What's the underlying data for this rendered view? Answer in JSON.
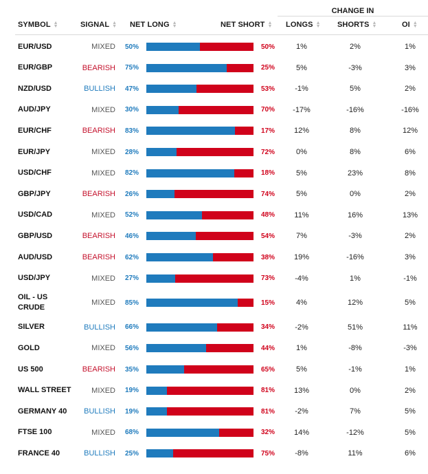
{
  "header": {
    "symbol": "SYMBOL",
    "signal": "SIGNAL",
    "net_long": "NET LONG",
    "net_short": "NET SHORT",
    "change_in": "CHANGE IN",
    "longs": "LONGS",
    "shorts": "SHORTS",
    "oi": "OI"
  },
  "colors": {
    "long": "#1f7bbd",
    "short": "#d0021b",
    "mixed": "#555555"
  },
  "rows": [
    {
      "symbol": "EUR/USD",
      "signal": "MIXED",
      "net_long": "50%",
      "net_short": "50%",
      "long_pct": 50,
      "longs": "1%",
      "shorts": "2%",
      "oi": "1%"
    },
    {
      "symbol": "EUR/GBP",
      "signal": "BEARISH",
      "net_long": "75%",
      "net_short": "25%",
      "long_pct": 75,
      "longs": "5%",
      "shorts": "-3%",
      "oi": "3%"
    },
    {
      "symbol": "NZD/USD",
      "signal": "BULLISH",
      "net_long": "47%",
      "net_short": "53%",
      "long_pct": 47,
      "longs": "-1%",
      "shorts": "5%",
      "oi": "2%"
    },
    {
      "symbol": "AUD/JPY",
      "signal": "MIXED",
      "net_long": "30%",
      "net_short": "70%",
      "long_pct": 30,
      "longs": "-17%",
      "shorts": "-16%",
      "oi": "-16%"
    },
    {
      "symbol": "EUR/CHF",
      "signal": "BEARISH",
      "net_long": "83%",
      "net_short": "17%",
      "long_pct": 83,
      "longs": "12%",
      "shorts": "8%",
      "oi": "12%"
    },
    {
      "symbol": "EUR/JPY",
      "signal": "MIXED",
      "net_long": "28%",
      "net_short": "72%",
      "long_pct": 28,
      "longs": "0%",
      "shorts": "8%",
      "oi": "6%"
    },
    {
      "symbol": "USD/CHF",
      "signal": "MIXED",
      "net_long": "82%",
      "net_short": "18%",
      "long_pct": 82,
      "longs": "5%",
      "shorts": "23%",
      "oi": "8%"
    },
    {
      "symbol": "GBP/JPY",
      "signal": "BEARISH",
      "net_long": "26%",
      "net_short": "74%",
      "long_pct": 26,
      "longs": "5%",
      "shorts": "0%",
      "oi": "2%"
    },
    {
      "symbol": "USD/CAD",
      "signal": "MIXED",
      "net_long": "52%",
      "net_short": "48%",
      "long_pct": 52,
      "longs": "11%",
      "shorts": "16%",
      "oi": "13%"
    },
    {
      "symbol": "GBP/USD",
      "signal": "BEARISH",
      "net_long": "46%",
      "net_short": "54%",
      "long_pct": 46,
      "longs": "7%",
      "shorts": "-3%",
      "oi": "2%"
    },
    {
      "symbol": "AUD/USD",
      "signal": "BEARISH",
      "net_long": "62%",
      "net_short": "38%",
      "long_pct": 62,
      "longs": "19%",
      "shorts": "-16%",
      "oi": "3%"
    },
    {
      "symbol": "USD/JPY",
      "signal": "MIXED",
      "net_long": "27%",
      "net_short": "73%",
      "long_pct": 27,
      "longs": "-4%",
      "shorts": "1%",
      "oi": "-1%"
    },
    {
      "symbol": "OIL - US CRUDE",
      "signal": "MIXED",
      "net_long": "85%",
      "net_short": "15%",
      "long_pct": 85,
      "longs": "4%",
      "shorts": "12%",
      "oi": "5%"
    },
    {
      "symbol": "SILVER",
      "signal": "BULLISH",
      "net_long": "66%",
      "net_short": "34%",
      "long_pct": 66,
      "longs": "-2%",
      "shorts": "51%",
      "oi": "11%"
    },
    {
      "symbol": "GOLD",
      "signal": "MIXED",
      "net_long": "56%",
      "net_short": "44%",
      "long_pct": 56,
      "longs": "1%",
      "shorts": "-8%",
      "oi": "-3%"
    },
    {
      "symbol": "US 500",
      "signal": "BEARISH",
      "net_long": "35%",
      "net_short": "65%",
      "long_pct": 35,
      "longs": "5%",
      "shorts": "-1%",
      "oi": "1%"
    },
    {
      "symbol": "WALL STREET",
      "signal": "MIXED",
      "net_long": "19%",
      "net_short": "81%",
      "long_pct": 19,
      "longs": "13%",
      "shorts": "0%",
      "oi": "2%"
    },
    {
      "symbol": "GERMANY 40",
      "signal": "BULLISH",
      "net_long": "19%",
      "net_short": "81%",
      "long_pct": 19,
      "longs": "-2%",
      "shorts": "7%",
      "oi": "5%"
    },
    {
      "symbol": "FTSE 100",
      "signal": "MIXED",
      "net_long": "68%",
      "net_short": "32%",
      "long_pct": 68,
      "longs": "14%",
      "shorts": "-12%",
      "oi": "5%"
    },
    {
      "symbol": "FRANCE 40",
      "signal": "BULLISH",
      "net_long": "25%",
      "net_short": "75%",
      "long_pct": 25,
      "longs": "-8%",
      "shorts": "11%",
      "oi": "6%"
    }
  ]
}
